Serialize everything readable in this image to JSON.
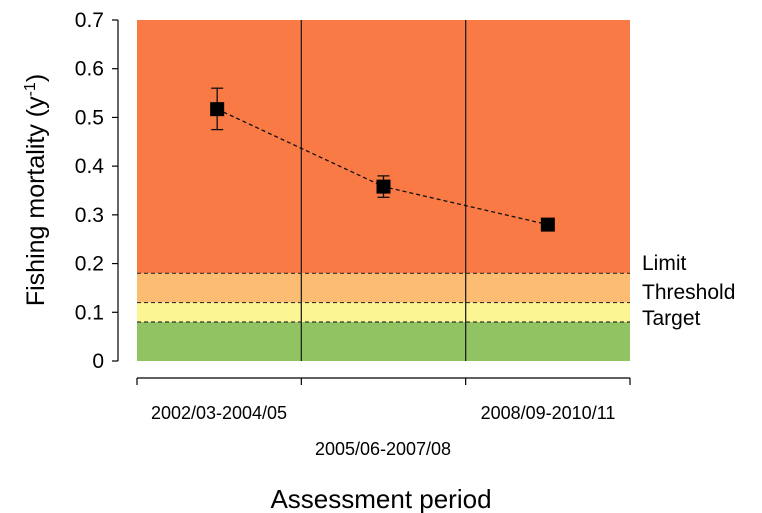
{
  "chart_data": {
    "type": "scatter",
    "ylabel_main": "Fishing mortality (y",
    "ylabel_sup": "-1",
    "ylabel_close": ")",
    "xlabel": "Assessment period",
    "ylim": [
      0,
      0.7
    ],
    "yticks": [
      "0",
      "0.1",
      "0.2",
      "0.3",
      "0.4",
      "0.5",
      "0.6",
      "0.7"
    ],
    "categories": [
      "2002/03-2004/05",
      "2005/06-2007/08",
      "2008/09-2010/11"
    ],
    "points": [
      {
        "category": "2002/03-2004/05",
        "y": 0.517,
        "err_low": 0.475,
        "err_high": 0.56
      },
      {
        "category": "2005/06-2007/08",
        "y": 0.358,
        "err_low": 0.336,
        "err_high": 0.38
      },
      {
        "category": "2008/09-2010/11",
        "y": 0.28,
        "err_low": 0.28,
        "err_high": 0.28
      }
    ],
    "reference_lines": [
      {
        "label": "Limit",
        "y": 0.18
      },
      {
        "label": "Threshold",
        "y": 0.12
      },
      {
        "label": "Target",
        "y": 0.08
      }
    ],
    "zones": [
      {
        "from": 0.18,
        "to": 0.7,
        "color": "#f97a45"
      },
      {
        "from": 0.12,
        "to": 0.18,
        "color": "#fcbd72"
      },
      {
        "from": 0.08,
        "to": 0.12,
        "color": "#fbf593"
      },
      {
        "from": 0,
        "to": 0.08,
        "color": "#92c362"
      }
    ],
    "marker_color": "#000000",
    "line_style": "dashed"
  }
}
